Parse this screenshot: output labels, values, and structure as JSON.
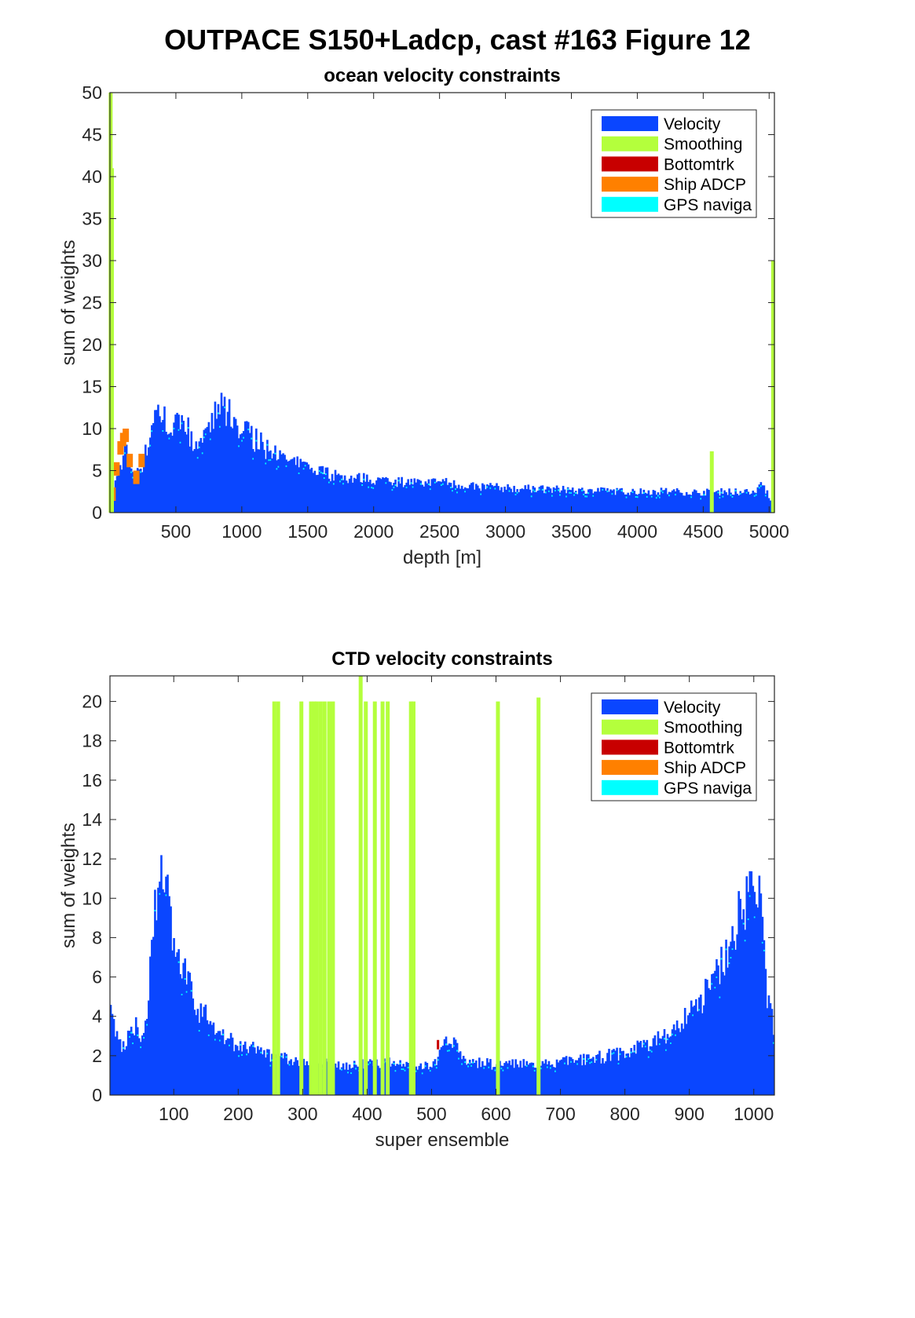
{
  "figure_title": "OUTPACE S150+Ladcp, cast #163  Figure 12",
  "legend": [
    {
      "label": "Velocity",
      "color": "#0a46ff"
    },
    {
      "label": "Smoothing",
      "color": "#b4ff3c"
    },
    {
      "label": "Bottomtrk",
      "color": "#c80000"
    },
    {
      "label": "Ship ADCP",
      "color": "#ff8000"
    },
    {
      "label": "GPS naviga",
      "color": "#00ffff"
    }
  ],
  "chart_data": [
    {
      "type": "bar",
      "stacked": true,
      "title": "ocean velocity constraints",
      "xlabel": "depth [m]",
      "ylabel": "sum of weights",
      "xlim": [
        0,
        5040
      ],
      "ylim": [
        0,
        50
      ],
      "xticks": [
        500,
        1000,
        1500,
        2000,
        2500,
        3000,
        3500,
        4000,
        4500,
        5000
      ],
      "yticks": [
        0,
        5,
        10,
        15,
        20,
        25,
        30,
        35,
        40,
        45,
        50
      ],
      "grid": false,
      "legend_position": "top-right",
      "velocity_envelope": {
        "x": [
          0,
          20,
          50,
          80,
          100,
          120,
          150,
          200,
          250,
          300,
          350,
          400,
          450,
          500,
          550,
          600,
          650,
          700,
          750,
          800,
          850,
          900,
          950,
          1000,
          1050,
          1100,
          1200,
          1300,
          1400,
          1500,
          1600,
          1700,
          1800,
          1900,
          2000,
          2200,
          2400,
          2500,
          2600,
          2800,
          3000,
          3200,
          3400,
          3600,
          3800,
          4000,
          4200,
          4400,
          4500,
          4600,
          4700,
          4800,
          4900,
          4950,
          5000,
          5020
        ],
        "y": [
          2.0,
          2.5,
          4.0,
          5.5,
          7.0,
          7.5,
          6.0,
          4.5,
          6.0,
          9.0,
          12.5,
          12.0,
          11.0,
          10.5,
          11.5,
          10.0,
          8.5,
          8.5,
          9.5,
          12.0,
          12.5,
          12.0,
          11.5,
          10.5,
          9.5,
          9.0,
          7.5,
          6.5,
          6.0,
          5.5,
          5.0,
          4.5,
          4.3,
          4.2,
          4.0,
          3.8,
          3.6,
          3.8,
          3.5,
          3.2,
          3.0,
          2.9,
          2.8,
          2.7,
          2.6,
          2.6,
          2.6,
          2.5,
          2.5,
          2.5,
          2.6,
          2.5,
          2.6,
          3.5,
          2.0,
          1.0
        ]
      },
      "ship_adcp": {
        "x": [
          20,
          50,
          80,
          100,
          120,
          150,
          200,
          240
        ],
        "y": [
          3.0,
          6.0,
          8.5,
          9.5,
          10.0,
          7.0,
          5.0,
          7.0
        ]
      },
      "smoothing_spikes": [
        {
          "x": 5,
          "y": 50
        },
        {
          "x": 15,
          "y": 41
        },
        {
          "x": 4565,
          "y": 7.3
        },
        {
          "x": 5030,
          "y": 30
        }
      ]
    },
    {
      "type": "bar",
      "stacked": true,
      "title": "CTD velocity constraints",
      "xlabel": "super ensemble",
      "ylabel": "sum of weights",
      "xlim": [
        1,
        1032
      ],
      "ylim": [
        0,
        21.3
      ],
      "xticks": [
        100,
        200,
        300,
        400,
        500,
        600,
        700,
        800,
        900,
        1000
      ],
      "yticks": [
        0,
        2,
        4,
        6,
        8,
        10,
        12,
        14,
        16,
        18,
        20
      ],
      "grid": false,
      "legend_position": "top-right",
      "velocity_envelope": {
        "x": [
          1,
          10,
          20,
          30,
          40,
          50,
          60,
          70,
          75,
          80,
          90,
          100,
          110,
          120,
          130,
          140,
          150,
          160,
          180,
          200,
          250,
          300,
          350,
          400,
          450,
          480,
          500,
          510,
          520,
          530,
          540,
          560,
          600,
          650,
          700,
          750,
          800,
          850,
          880,
          900,
          920,
          940,
          960,
          980,
          990,
          1000,
          1010,
          1020,
          1032
        ],
        "y": [
          4.2,
          3.2,
          2.5,
          3.0,
          3.5,
          3.2,
          4.5,
          9.5,
          11.5,
          11.0,
          10.0,
          8.5,
          7.5,
          6.0,
          5.0,
          4.5,
          4.0,
          3.8,
          3.0,
          2.6,
          2.1,
          1.7,
          1.6,
          1.6,
          1.7,
          1.5,
          1.6,
          1.8,
          2.6,
          3.0,
          2.3,
          1.7,
          1.6,
          1.6,
          1.7,
          1.9,
          2.2,
          2.9,
          3.5,
          4.2,
          5.0,
          6.0,
          7.5,
          9.5,
          10.5,
          11.5,
          9.5,
          5.5,
          3.5
        ]
      },
      "smoothing_spikes": [
        {
          "x": 256,
          "y": 20.0
        },
        {
          "x": 262,
          "y": 20.0
        },
        {
          "x": 298,
          "y": 20.0
        },
        {
          "x": 313,
          "y": 20.0
        },
        {
          "x": 318,
          "y": 20.0
        },
        {
          "x": 322,
          "y": 20.0
        },
        {
          "x": 328,
          "y": 20.0
        },
        {
          "x": 334,
          "y": 20.0
        },
        {
          "x": 341,
          "y": 20.0
        },
        {
          "x": 347,
          "y": 20.0
        },
        {
          "x": 390,
          "y": 21.3
        },
        {
          "x": 398,
          "y": 20.0
        },
        {
          "x": 412,
          "y": 20.0
        },
        {
          "x": 424,
          "y": 20.0
        },
        {
          "x": 432,
          "y": 20.0
        },
        {
          "x": 468,
          "y": 20.0
        },
        {
          "x": 472,
          "y": 20.0
        },
        {
          "x": 603,
          "y": 20.0
        },
        {
          "x": 666,
          "y": 20.2
        }
      ],
      "bottomtrk": [
        {
          "x": 510,
          "y": 2.8
        }
      ]
    }
  ]
}
